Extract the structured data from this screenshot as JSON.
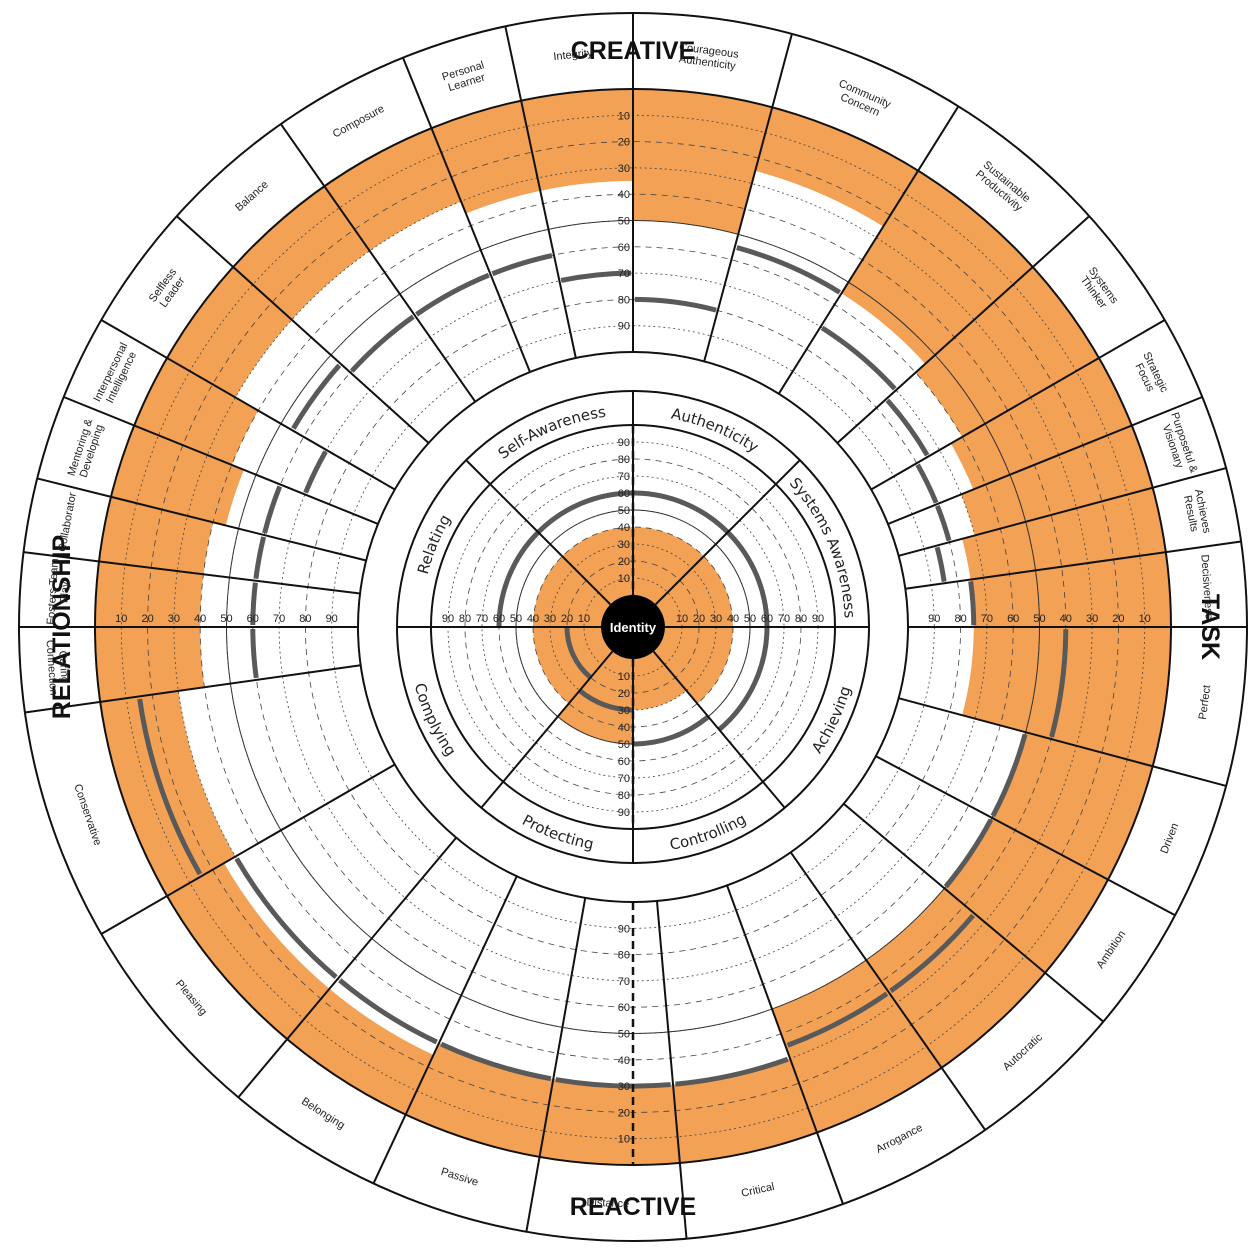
{
  "chart_data": {
    "type": "radial",
    "quadrant_titles": {
      "top": "CREATIVE",
      "bottom": "REACTIVE",
      "left": "RELATIONSHIP",
      "right": "TASK"
    },
    "center_label": "Identity",
    "summary_dimensions": [
      {
        "name": "Authenticity",
        "score": 40,
        "norm": 60
      },
      {
        "name": "Systems Awareness",
        "score": 40,
        "norm": 60
      },
      {
        "name": "Achieving",
        "score": 40,
        "norm": 60
      },
      {
        "name": "Controlling",
        "score": 30,
        "norm": 50
      },
      {
        "name": "Protecting",
        "score": 50,
        "norm": 30
      },
      {
        "name": "Complying",
        "score": 40,
        "norm": 20
      },
      {
        "name": "Relating",
        "score": 40,
        "norm": 60
      },
      {
        "name": "Self-Awareness",
        "score": 40,
        "norm": 60
      }
    ],
    "summary_scale": {
      "top": [
        "90",
        "80",
        "70",
        "60",
        "50",
        "40",
        "30",
        "20",
        "10"
      ],
      "bottom": [
        "10",
        "20",
        "30",
        "40",
        "50",
        "60",
        "70",
        "80",
        "90"
      ],
      "left": [
        "90",
        "80",
        "70",
        "60",
        "50",
        "40",
        "30",
        "20",
        "10"
      ],
      "right": [
        "10",
        "20",
        "30",
        "40",
        "50",
        "60",
        "70",
        "80",
        "90"
      ]
    },
    "outer_scale": {
      "top": [
        "90",
        "80",
        "70",
        "60",
        "50",
        "40",
        "30",
        "20",
        "10"
      ],
      "bottom": [
        "10",
        "20",
        "30",
        "40",
        "50",
        "60",
        "70",
        "80",
        "90"
      ],
      "left": [
        "90",
        "80",
        "70",
        "60",
        "50",
        "40",
        "30",
        "20",
        "10"
      ],
      "right": [
        "10",
        "20",
        "30",
        "40",
        "50",
        "60",
        "70",
        "80",
        "90"
      ]
    },
    "dimensions": [
      {
        "name": "Courageous Authenticity",
        "score": 50,
        "norm": 80
      },
      {
        "name": "Community Concern",
        "score": 25,
        "norm": 55
      },
      {
        "name": "Sustainable Productivity",
        "score": 55,
        "norm": 70
      },
      {
        "name": "Systems Thinker",
        "score": 60,
        "norm": 75
      },
      {
        "name": "Strategic Focus",
        "score": 65,
        "norm": 80
      },
      {
        "name": "Purposeful & Visionary",
        "score": 70,
        "norm": 80
      },
      {
        "name": "Achieves Results",
        "score": 75,
        "norm": 85
      },
      {
        "name": "Decisiveness",
        "score": 75,
        "norm": 75
      },
      {
        "name": "Perfect",
        "score": 75,
        "norm": 40
      },
      {
        "name": "Driven",
        "score": 50,
        "norm": 50
      },
      {
        "name": "Ambition",
        "score": 50,
        "norm": 50
      },
      {
        "name": "Autocratic",
        "score": 50,
        "norm": 35
      },
      {
        "name": "Arrogance",
        "score": 50,
        "norm": 35
      },
      {
        "name": "Critical",
        "score": 30,
        "norm": 30
      },
      {
        "name": "Distance",
        "score": 30,
        "norm": 30
      },
      {
        "name": "Passive",
        "score": 30,
        "norm": 30
      },
      {
        "name": "Belonging",
        "score": 25,
        "norm": 30
      },
      {
        "name": "Pleasing",
        "score": 25,
        "norm": 30
      },
      {
        "name": "Conservative",
        "score": 30,
        "norm": 15
      },
      {
        "name": "Caring Connection",
        "score": 40,
        "norm": 60
      },
      {
        "name": "Fosters Team Play",
        "score": 40,
        "norm": 60
      },
      {
        "name": "Collaborator",
        "score": 40,
        "norm": 60
      },
      {
        "name": "Mentoring & Developing",
        "score": 45,
        "norm": 60
      },
      {
        "name": "Interpersonal Intelligence",
        "score": 40,
        "norm": 70
      },
      {
        "name": "Selfless Leader",
        "score": 30,
        "norm": 55
      },
      {
        "name": "Balance",
        "score": 30,
        "norm": 60
      },
      {
        "name": "Composure",
        "score": 30,
        "norm": 60
      },
      {
        "name": "Personal Learner",
        "score": 35,
        "norm": 60
      },
      {
        "name": "Integrity",
        "score": 35,
        "norm": 70
      }
    ],
    "colors": {
      "fill": "#f2a155",
      "norm_arc": "#595959",
      "line": "#111111",
      "grid": "#444444"
    }
  }
}
